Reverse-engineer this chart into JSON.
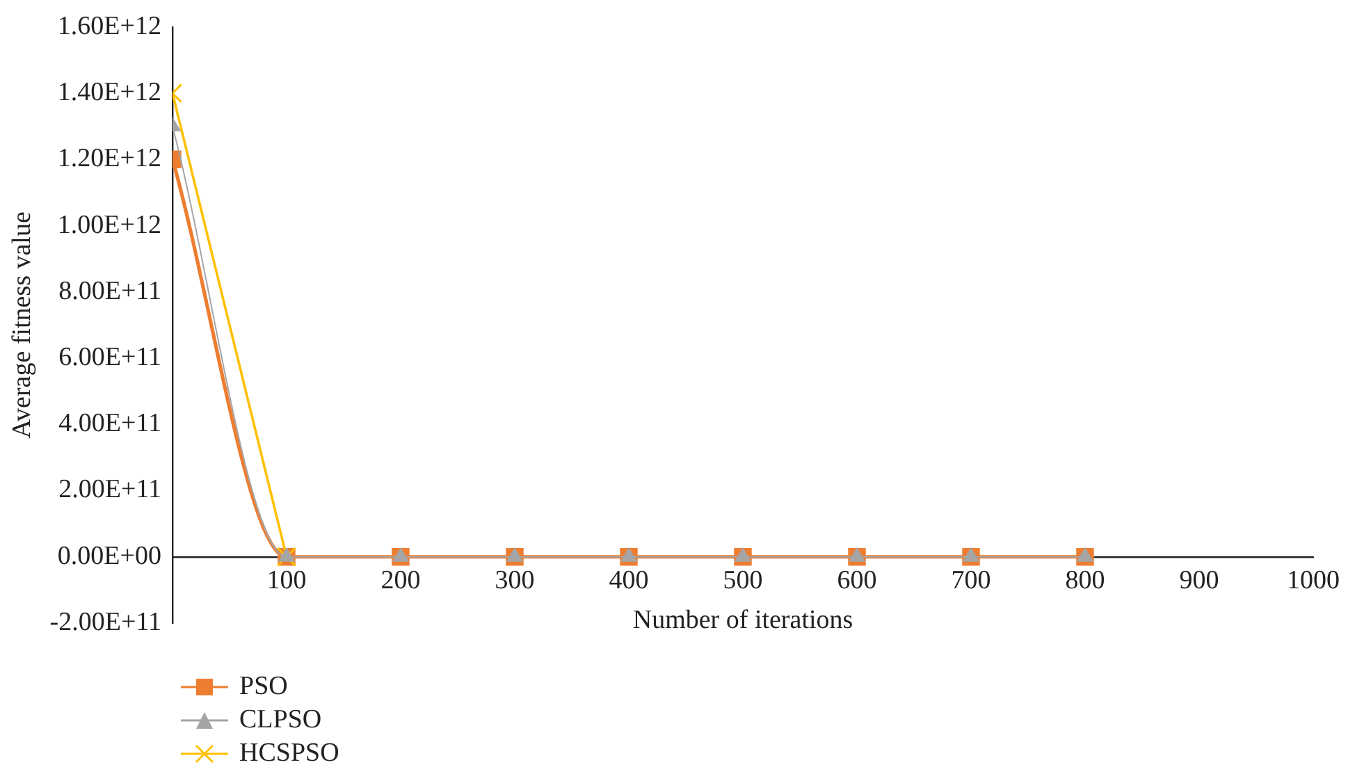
{
  "chart_data": {
    "type": "line",
    "xlabel": "Number of iterations",
    "ylabel": "Average fitness value",
    "x": [
      0,
      100,
      200,
      300,
      400,
      500,
      600,
      700,
      800
    ],
    "series": [
      {
        "name": "PSO",
        "color": "#ed7d31",
        "marker": "square",
        "values": [
          1200000000000,
          0,
          0,
          0,
          0,
          0,
          0,
          0,
          0
        ]
      },
      {
        "name": "CLPSO",
        "color": "#a5a5a5",
        "marker": "triangle",
        "values": [
          1300000000000,
          0,
          0,
          0,
          0,
          0,
          0,
          0,
          0
        ]
      },
      {
        "name": "HCSPSO",
        "color": "#ffc000",
        "marker": "cross",
        "values": [
          1400000000000,
          0,
          null,
          null,
          null,
          null,
          null,
          null,
          null
        ]
      }
    ],
    "xlim": [
      0,
      1000
    ],
    "xticks": [
      100,
      200,
      300,
      400,
      500,
      600,
      700,
      800,
      900,
      1000
    ],
    "ylim": [
      -200000000000,
      1600000000000
    ],
    "yticks": [
      {
        "value": -200000000000,
        "label": "-2.00E+11"
      },
      {
        "value": 0,
        "label": "0.00E+00"
      },
      {
        "value": 200000000000,
        "label": "2.00E+11"
      },
      {
        "value": 400000000000,
        "label": "4.00E+11"
      },
      {
        "value": 600000000000,
        "label": "6.00E+11"
      },
      {
        "value": 800000000000,
        "label": "8.00E+11"
      },
      {
        "value": 1000000000000,
        "label": "1.00E+12"
      },
      {
        "value": 1200000000000,
        "label": "1.20E+12"
      },
      {
        "value": 1400000000000,
        "label": "1.40E+12"
      },
      {
        "value": 1600000000000,
        "label": "1.60E+12"
      }
    ],
    "grid": false,
    "legend": "bottom left",
    "line_style": "solid"
  }
}
